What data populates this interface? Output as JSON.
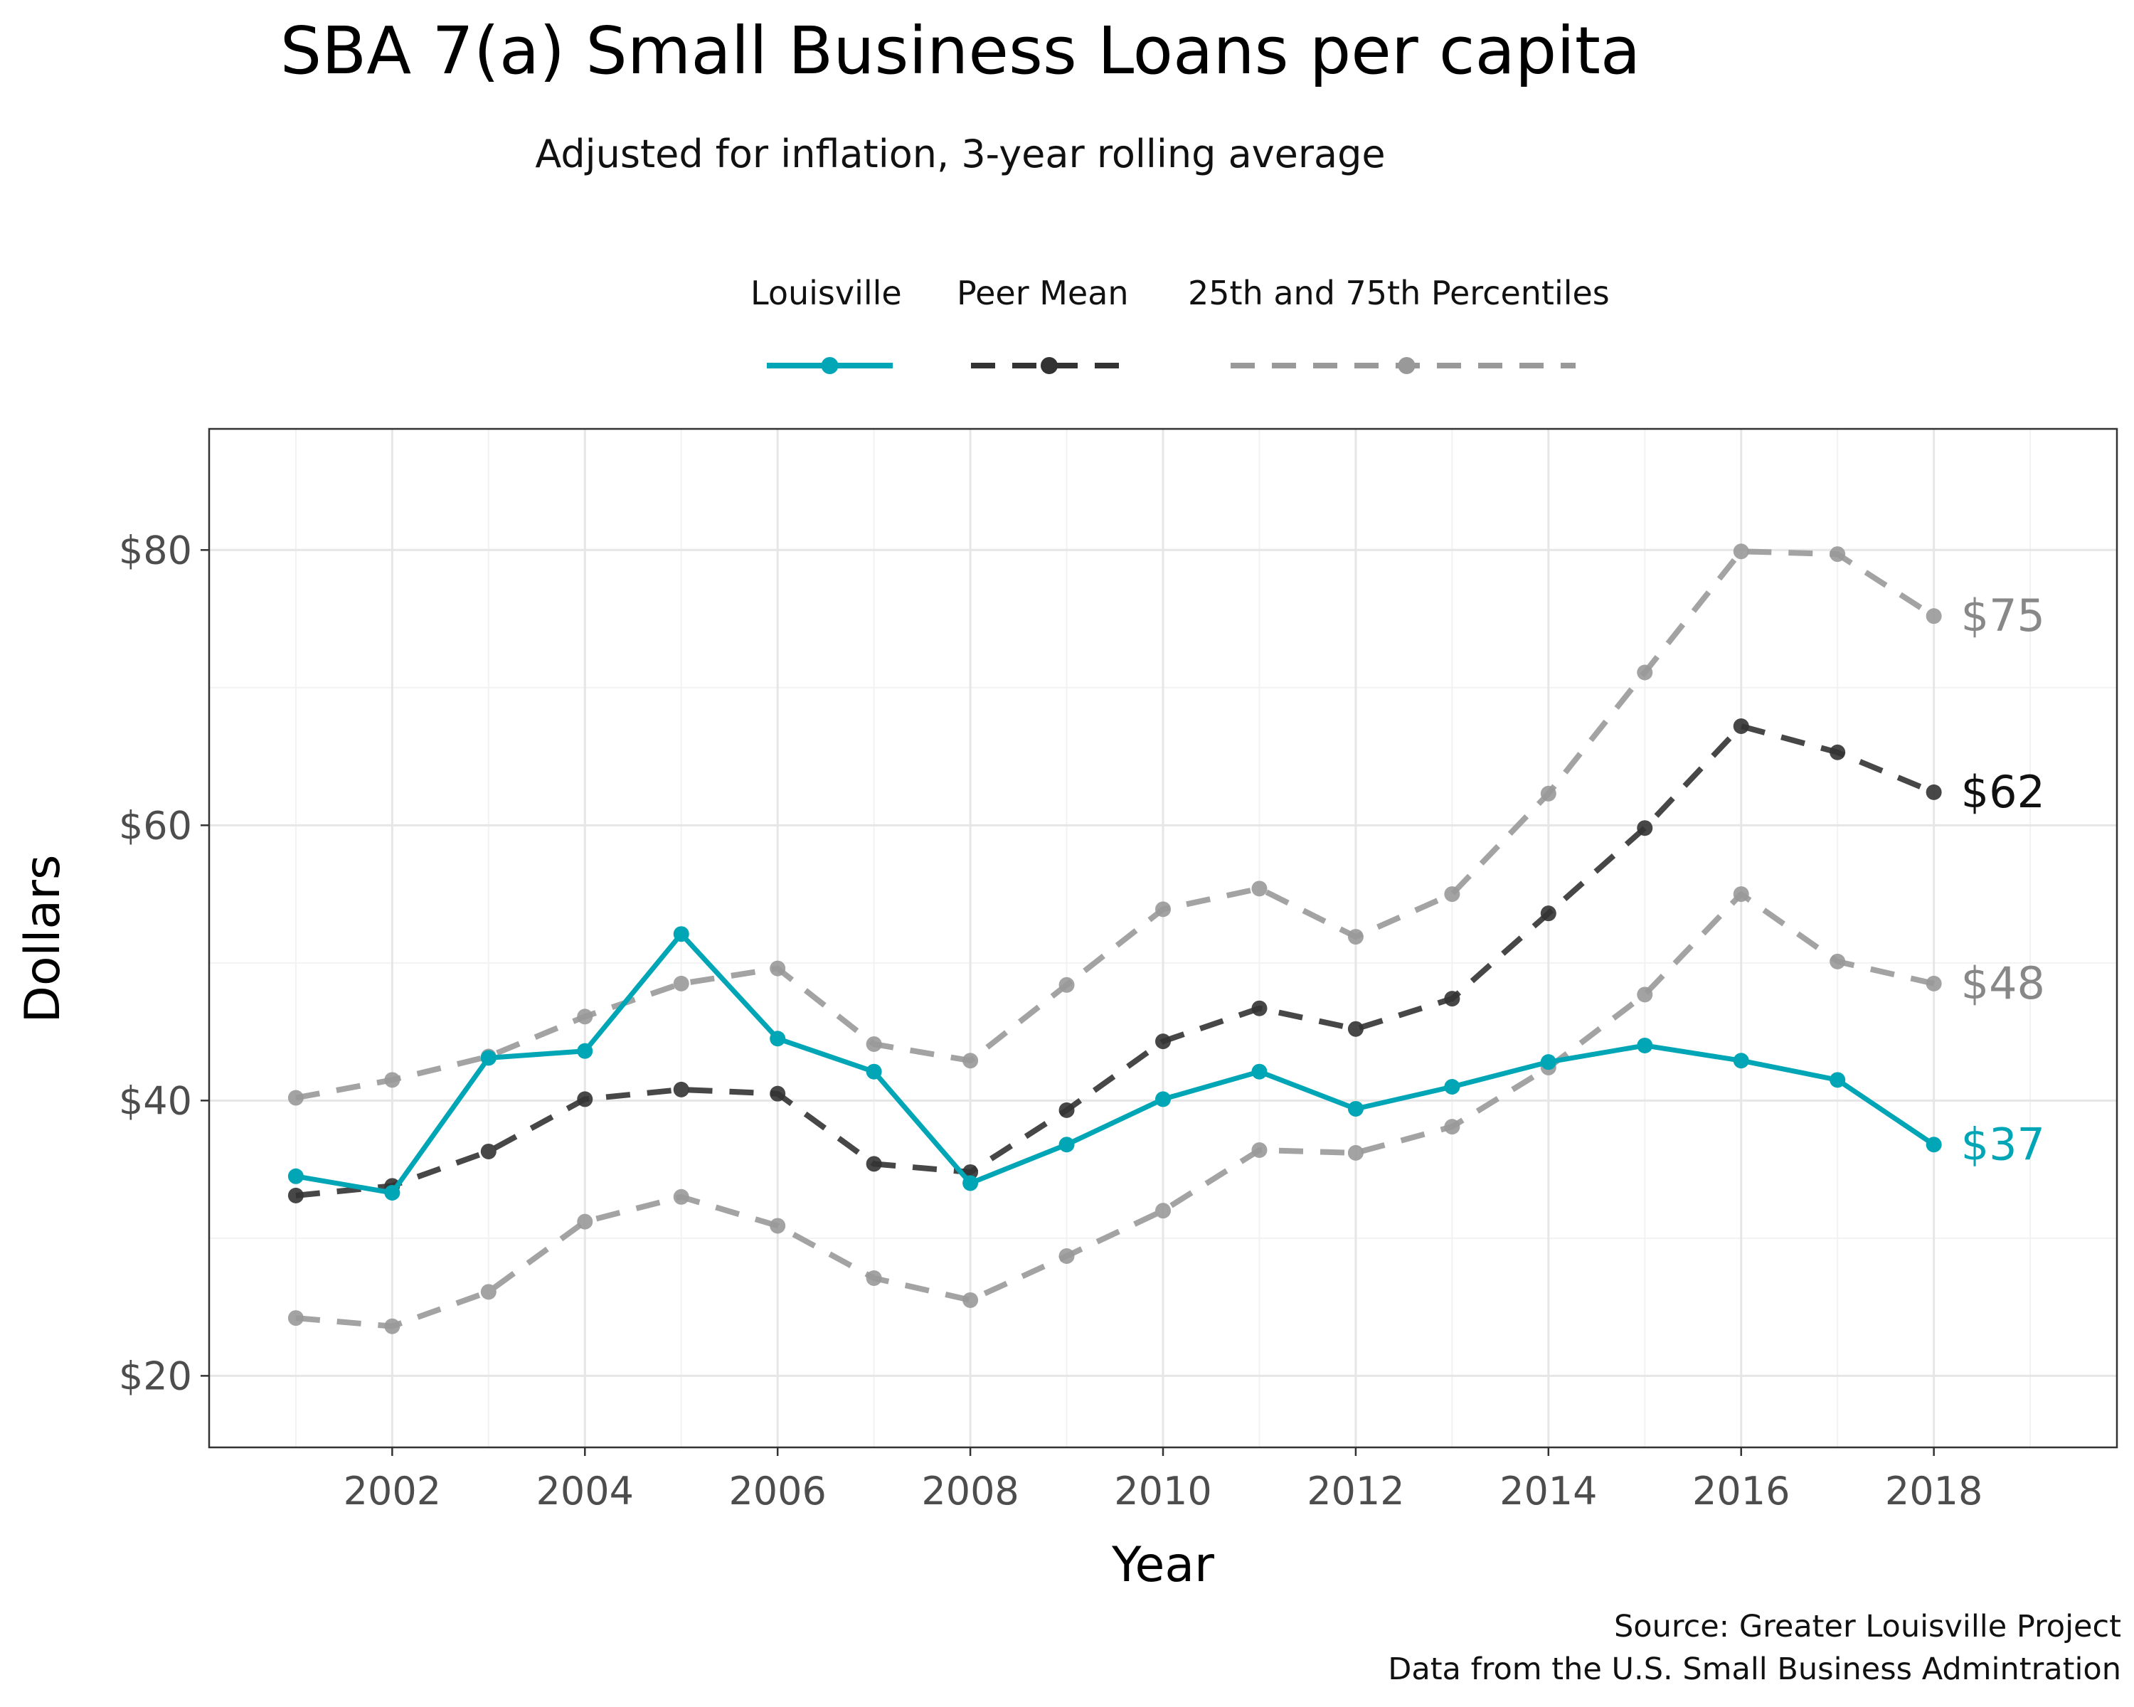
{
  "chart_data": {
    "type": "line",
    "title": "SBA 7(a) Small Business Loans per capita",
    "subtitle": "Adjusted for inflation, 3-year rolling average",
    "xlabel": "Year",
    "ylabel": "Dollars",
    "x": [
      2001,
      2002,
      2003,
      2004,
      2005,
      2006,
      2007,
      2008,
      2009,
      2010,
      2011,
      2012,
      2013,
      2014,
      2015,
      2016,
      2017,
      2018
    ],
    "xlim": [
      2000.1,
      2019.9
    ],
    "ylim": [
      14.8,
      88.8
    ],
    "x_ticks": [
      2002,
      2004,
      2006,
      2008,
      2010,
      2012,
      2014,
      2016,
      2018
    ],
    "y_ticks": [
      20,
      40,
      60,
      80
    ],
    "y_tick_labels": [
      "$20",
      "$40",
      "$60",
      "$80"
    ],
    "grid": true,
    "legend_position": "top",
    "series": [
      {
        "name": "Louisville",
        "color": "#00a6b5",
        "style": "solid",
        "values": [
          34.5,
          33.3,
          43.1,
          43.6,
          52.1,
          44.5,
          42.1,
          34.0,
          36.8,
          40.1,
          42.1,
          39.4,
          41.0,
          42.8,
          44.0,
          42.9,
          41.5,
          36.8
        ],
        "end_label": "$37"
      },
      {
        "name": "Peer Mean",
        "color": "#333333",
        "style": "dashed",
        "values": [
          33.1,
          33.8,
          36.3,
          40.1,
          40.8,
          40.5,
          35.4,
          34.8,
          39.3,
          44.3,
          46.7,
          45.2,
          47.4,
          53.6,
          59.8,
          67.2,
          65.3,
          62.4
        ],
        "end_label": "$62"
      },
      {
        "name": "25th and 75th Percentiles",
        "color": "#999999",
        "style": "dashed",
        "values": [
          40.2,
          41.5,
          43.2,
          46.1,
          48.5,
          49.6,
          44.1,
          42.9,
          48.4,
          53.9,
          55.4,
          51.9,
          55.0,
          62.3,
          71.1,
          79.9,
          79.7,
          75.2
        ],
        "end_label": "$75"
      },
      {
        "name": "25th and 75th Percentiles",
        "color": "#999999",
        "style": "dashed",
        "values": [
          24.2,
          23.6,
          26.1,
          31.2,
          33.0,
          30.9,
          27.1,
          25.5,
          28.7,
          32.0,
          36.4,
          36.2,
          38.1,
          42.4,
          47.7,
          55.0,
          50.1,
          48.5
        ],
        "end_label": "$48"
      }
    ],
    "legend": [
      "Louisville",
      "Peer Mean",
      "25th and 75th Percentiles"
    ],
    "source_lines": [
      "Source: Greater Louisville Project",
      "Data from the U.S. Small Business Admintration"
    ]
  }
}
